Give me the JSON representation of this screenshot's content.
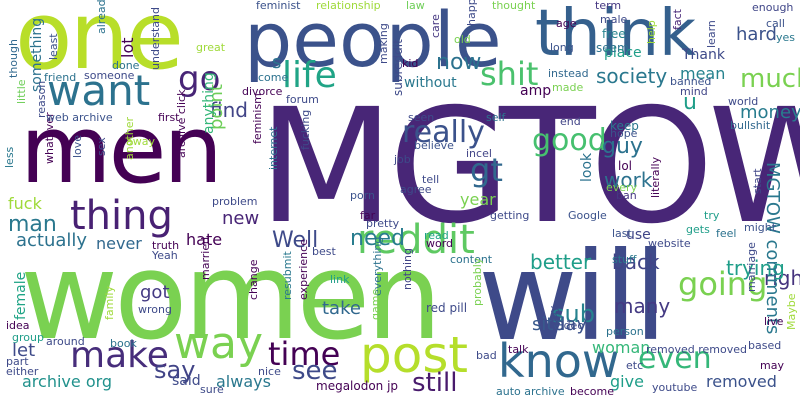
{
  "words": [
    {
      "text": "MGTOW",
      "color": "#482677"
    },
    {
      "text": "women",
      "color": "#7ad151"
    },
    {
      "text": "will",
      "color": "#3e4a89"
    },
    {
      "text": "men",
      "color": "#440154"
    },
    {
      "text": "one",
      "color": "#b8de29"
    },
    {
      "text": "people",
      "color": "#3b528b"
    },
    {
      "text": "think",
      "color": "#35608d"
    },
    {
      "text": "post",
      "color": "#b5de2b"
    },
    {
      "text": "know",
      "color": "#31688e"
    },
    {
      "text": "way",
      "color": "#7ad151"
    },
    {
      "text": "reddit",
      "color": "#5ec962"
    },
    {
      "text": "want",
      "color": "#2c728e"
    },
    {
      "text": "thing",
      "color": "#482173"
    },
    {
      "text": "make",
      "color": "#472d7b"
    },
    {
      "text": "life",
      "color": "#20a486"
    },
    {
      "text": "time",
      "color": "#440154"
    },
    {
      "text": "shit",
      "color": "#4ac16d"
    },
    {
      "text": "going",
      "color": "#7ad151"
    },
    {
      "text": "even",
      "color": "#35b779"
    },
    {
      "text": "really",
      "color": "#3b528b"
    },
    {
      "text": "good",
      "color": "#46c06f"
    },
    {
      "text": "gt",
      "color": "#31688e"
    },
    {
      "text": "go",
      "color": "#482576"
    },
    {
      "text": "much",
      "color": "#7ad151"
    },
    {
      "text": "still",
      "color": "#481a6c"
    },
    {
      "text": "see",
      "color": "#3e4a89"
    },
    {
      "text": "need",
      "color": "#287c8e"
    },
    {
      "text": "Well",
      "color": "#3e4a89"
    },
    {
      "text": "man",
      "color": "#2a788e"
    },
    {
      "text": "now",
      "color": "#2c728e"
    },
    {
      "text": "sub",
      "color": "#26828e"
    },
    {
      "text": "say",
      "color": "#414487"
    },
    {
      "text": "u",
      "color": "#1f9e89"
    },
    {
      "text": "hard",
      "color": "#3b528b"
    },
    {
      "text": "guy",
      "color": "#2c728e"
    },
    {
      "text": "society",
      "color": "#2a788e"
    },
    {
      "text": "mean",
      "color": "#26828e"
    },
    {
      "text": "money",
      "color": "#287c8e"
    },
    {
      "text": "work",
      "color": "#2c728e"
    },
    {
      "text": "take",
      "color": "#31688e"
    },
    {
      "text": "got",
      "color": "#443a83"
    },
    {
      "text": "right",
      "color": "#46337e"
    },
    {
      "text": "trying",
      "color": "#1f9e89"
    },
    {
      "text": "back",
      "color": "#414487"
    },
    {
      "text": "better",
      "color": "#1f9e89"
    },
    {
      "text": "site",
      "color": "#38598c"
    },
    {
      "text": "woman",
      "color": "#35b779"
    },
    {
      "text": "many",
      "color": "#443a83"
    },
    {
      "text": "day",
      "color": "#3b528b"
    },
    {
      "text": "removed",
      "color": "#3b528b"
    },
    {
      "text": "give",
      "color": "#1f9e89"
    },
    {
      "text": "MGTOW comments",
      "color": "#2a788e"
    },
    {
      "text": "find",
      "color": "#414487"
    },
    {
      "text": "point",
      "color": "#6ece58"
    },
    {
      "text": "new",
      "color": "#482576"
    },
    {
      "text": "hate",
      "color": "#440154"
    },
    {
      "text": "actually",
      "color": "#2c728e"
    },
    {
      "text": "let",
      "color": "#3e4a89"
    },
    {
      "text": "archive org",
      "color": "#21918c"
    },
    {
      "text": "always",
      "color": "#2a788e"
    },
    {
      "text": "fuck",
      "color": "#9fda3a"
    },
    {
      "text": "something",
      "color": "#2c728e"
    },
    {
      "text": "female",
      "color": "#20a486"
    },
    {
      "text": "never",
      "color": "#31688e"
    },
    {
      "text": "lot",
      "color": "#440154"
    },
    {
      "text": "anything",
      "color": "#35b779"
    },
    {
      "text": "without",
      "color": "#2a788e"
    },
    {
      "text": "Thank",
      "color": "#3e4a89"
    },
    {
      "text": "place",
      "color": "#1f9e89"
    },
    {
      "text": "year",
      "color": "#7ad151"
    },
    {
      "text": "use",
      "color": "#404688"
    },
    {
      "text": "look",
      "color": "#2c728e"
    },
    {
      "text": "amp",
      "color": "#440154"
    },
    {
      "text": "subreddit",
      "color": "#3e4a89"
    },
    {
      "text": "said",
      "color": "#3e4a89"
    },
    {
      "text": "feminist",
      "color": "#3b528b"
    },
    {
      "text": "relationship",
      "color": "#9fda3a"
    },
    {
      "text": "law",
      "color": "#6ece58"
    },
    {
      "text": "thought",
      "color": "#7ad151"
    },
    {
      "text": "already",
      "color": "#2c728e"
    },
    {
      "text": "least",
      "color": "#3b528b"
    },
    {
      "text": "though",
      "color": "#31688e"
    },
    {
      "text": "care",
      "color": "#453781"
    },
    {
      "text": "age",
      "color": "#440154"
    },
    {
      "text": "male",
      "color": "#3e4a89"
    },
    {
      "text": "term",
      "color": "#453781"
    },
    {
      "text": "enough",
      "color": "#404688"
    },
    {
      "text": "fact",
      "color": "#482878"
    },
    {
      "text": "learn",
      "color": "#3e4a89"
    },
    {
      "text": "call",
      "color": "#3b528b"
    },
    {
      "text": "yes",
      "color": "#2a788e"
    },
    {
      "text": "free",
      "color": "#26828e"
    },
    {
      "text": "seem",
      "color": "#2c728e"
    },
    {
      "text": "long",
      "color": "#3b528b"
    },
    {
      "text": "old",
      "color": "#7ad151"
    },
    {
      "text": "happen",
      "color": "#3e4a89"
    },
    {
      "text": "keep",
      "color": "#2a788e"
    },
    {
      "text": "hope",
      "color": "#3b528b"
    },
    {
      "text": "end",
      "color": "#414487"
    },
    {
      "text": "help",
      "color": "#9fda3a"
    },
    {
      "text": "banned",
      "color": "#3b528b"
    },
    {
      "text": "mind",
      "color": "#404688"
    },
    {
      "text": "world",
      "color": "#3e4a89"
    },
    {
      "text": "bullshit",
      "color": "#31688e"
    },
    {
      "text": "instead",
      "color": "#31688e"
    },
    {
      "text": "made",
      "color": "#7ad151"
    },
    {
      "text": "lol",
      "color": "#440154"
    },
    {
      "text": "ban",
      "color": "#453781"
    },
    {
      "text": "every",
      "color": "#7ad151"
    },
    {
      "text": "literally",
      "color": "#440154"
    },
    {
      "text": "start",
      "color": "#404688"
    },
    {
      "text": "might",
      "color": "#3b528b"
    },
    {
      "text": "feel",
      "color": "#2c728e"
    },
    {
      "text": "marriage",
      "color": "#3e4a89"
    },
    {
      "text": "gets",
      "color": "#1f9e89"
    },
    {
      "text": "website",
      "color": "#3e4a89"
    },
    {
      "text": "last",
      "color": "#3b528b"
    },
    {
      "text": "stuff",
      "color": "#2a788e"
    },
    {
      "text": "Google",
      "color": "#3b528b"
    },
    {
      "text": "try",
      "color": "#1f9e89"
    },
    {
      "text": "getting",
      "color": "#3e4a89"
    },
    {
      "text": "agree",
      "color": "#3e4a89"
    },
    {
      "text": "tell",
      "color": "#3e4a89"
    },
    {
      "text": "believe",
      "color": "#3b528b"
    },
    {
      "text": "incel",
      "color": "#414487"
    },
    {
      "text": "self",
      "color": "#2c728e"
    },
    {
      "text": "seen",
      "color": "#3e4a89"
    },
    {
      "text": "job",
      "color": "#3e4a89"
    },
    {
      "text": "porn",
      "color": "#3b528b"
    },
    {
      "text": "far",
      "color": "#440154"
    },
    {
      "text": "pretty",
      "color": "#3e4a89"
    },
    {
      "text": "read",
      "color": "#20a486"
    },
    {
      "text": "word",
      "color": "#440154"
    },
    {
      "text": "content",
      "color": "#2c728e"
    },
    {
      "text": "best",
      "color": "#3e4a89"
    },
    {
      "text": "everything",
      "color": "#2c728e"
    },
    {
      "text": "red pill",
      "color": "#3e4a89"
    },
    {
      "text": "nothing",
      "color": "#414487"
    },
    {
      "text": "probably",
      "color": "#7ad151"
    },
    {
      "text": "bad",
      "color": "#3e4a89"
    },
    {
      "text": "talk",
      "color": "#440154"
    },
    {
      "text": "etc",
      "color": "#3e4a89"
    },
    {
      "text": "person",
      "color": "#2c728e"
    },
    {
      "text": "video",
      "color": "#3e4a89"
    },
    {
      "text": "removed removed",
      "color": "#3e4a89"
    },
    {
      "text": "youtube",
      "color": "#3e4a89"
    },
    {
      "text": "auto archive",
      "color": "#2c728e"
    },
    {
      "text": "become",
      "color": "#440154"
    },
    {
      "text": "group",
      "color": "#1f9e89"
    },
    {
      "text": "pay",
      "color": "#3e4a89"
    },
    {
      "text": "based",
      "color": "#3e4a89"
    },
    {
      "text": "Maybe",
      "color": "#9fda3a"
    },
    {
      "text": "live",
      "color": "#440154"
    },
    {
      "text": "may",
      "color": "#440154"
    },
    {
      "text": "game",
      "color": "#7ad151"
    },
    {
      "text": "megalodon jp",
      "color": "#440154"
    },
    {
      "text": "nice",
      "color": "#3e4a89"
    },
    {
      "text": "sure",
      "color": "#3e4a89"
    },
    {
      "text": "experience",
      "color": "#440154"
    },
    {
      "text": "resubmit",
      "color": "#2a788e"
    },
    {
      "text": "link",
      "color": "#1f9e89"
    },
    {
      "text": "change",
      "color": "#440154"
    },
    {
      "text": "married",
      "color": "#440154"
    },
    {
      "text": "wrong",
      "color": "#3e4a89"
    },
    {
      "text": "book",
      "color": "#2c728e"
    },
    {
      "text": "around",
      "color": "#3e4a89"
    },
    {
      "text": "family",
      "color": "#9fda3a"
    },
    {
      "text": "either",
      "color": "#3e4a89"
    },
    {
      "text": "part",
      "color": "#3e4a89"
    },
    {
      "text": "idea",
      "color": "#440154"
    },
    {
      "text": "truth",
      "color": "#440154"
    },
    {
      "text": "Yeah",
      "color": "#3e4a89"
    },
    {
      "text": "archive click",
      "color": "#440154"
    },
    {
      "text": "another",
      "color": "#9fda3a"
    },
    {
      "text": "sex",
      "color": "#3e4a89"
    },
    {
      "text": "love",
      "color": "#3b528b"
    },
    {
      "text": "whatever",
      "color": "#440154"
    },
    {
      "text": "less",
      "color": "#2a788e"
    },
    {
      "text": "web archive",
      "color": "#3b528b"
    },
    {
      "text": "friend",
      "color": "#2c728e"
    },
    {
      "text": "someone",
      "color": "#3e4a89"
    },
    {
      "text": "done",
      "color": "#2c728e"
    },
    {
      "text": "little",
      "color": "#6ece58"
    },
    {
      "text": "reason",
      "color": "#3e4a89"
    },
    {
      "text": "understand",
      "color": "#3e4a89"
    },
    {
      "text": "away",
      "color": "#9fda3a"
    },
    {
      "text": "first",
      "color": "#440154"
    },
    {
      "text": "problem",
      "color": "#3e4a89"
    },
    {
      "text": "feminism",
      "color": "#440154"
    },
    {
      "text": "great",
      "color": "#9fda3a"
    },
    {
      "text": "come",
      "color": "#2c728e"
    },
    {
      "text": "divorce",
      "color": "#440154"
    },
    {
      "text": "forum",
      "color": "#3e4a89"
    },
    {
      "text": "fucking",
      "color": "#3e4a89"
    },
    {
      "text": "internet",
      "color": "#2c728e"
    },
    {
      "text": "kid",
      "color": "#440154"
    },
    {
      "text": "making",
      "color": "#3e4a89"
    },
    {
      "text": "s",
      "color": "#2c728e"
    }
  ]
}
